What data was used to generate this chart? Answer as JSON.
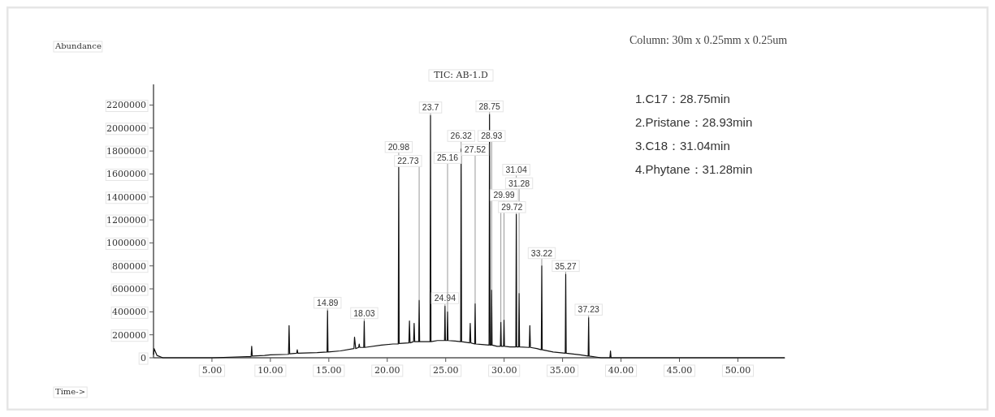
{
  "chart_data": {
    "type": "line",
    "title": "TIC: AB-1.D",
    "xlabel": "Time->",
    "ylabel": "Abundance",
    "xlim": [
      0,
      54
    ],
    "ylim": [
      0,
      2380000
    ],
    "xticks": [
      {
        "value": 5,
        "label": "5.00"
      },
      {
        "value": 10,
        "label": "10.00"
      },
      {
        "value": 15,
        "label": "15.00"
      },
      {
        "value": 20,
        "label": "20.00"
      },
      {
        "value": 25,
        "label": "25.00"
      },
      {
        "value": 30,
        "label": "30.00"
      },
      {
        "value": 35,
        "label": "35.00"
      },
      {
        "value": 40,
        "label": "40.00"
      },
      {
        "value": 45,
        "label": "45.00"
      },
      {
        "value": 50,
        "label": "50.00"
      }
    ],
    "yticks": [
      0,
      200000,
      400000,
      600000,
      800000,
      1000000,
      1200000,
      1400000,
      1600000,
      1800000,
      2000000,
      2200000
    ],
    "grid": false,
    "marker": "none",
    "line_style": "solid",
    "series": [
      {
        "color": "#111111",
        "x": [
          0,
          0.05,
          0.3,
          0.8,
          5,
          8,
          8.35,
          8.4,
          8.45,
          9.5,
          10,
          11.55,
          11.6,
          11.65,
          12.25,
          12.3,
          12.35,
          14,
          14.85,
          14.89,
          14.93,
          16,
          17.15,
          17.2,
          17.3,
          17.55,
          17.6,
          17.65,
          17.99,
          18.03,
          18.07,
          19.5,
          20.5,
          20.94,
          20.98,
          21.02,
          21.85,
          21.9,
          21.95,
          22.25,
          22.3,
          22.35,
          22.69,
          22.73,
          22.77,
          23.66,
          23.7,
          23.74,
          24.3,
          24.9,
          24.94,
          24.98,
          25.12,
          25.16,
          25.2,
          25.8,
          26.28,
          26.32,
          26.36,
          27.05,
          27.1,
          27.15,
          27.48,
          27.52,
          27.56,
          28.1,
          28.71,
          28.75,
          28.8,
          28.89,
          28.93,
          28.97,
          29.4,
          29.68,
          29.72,
          29.76,
          29.95,
          29.99,
          30.03,
          30.5,
          31,
          31.04,
          31.08,
          31.24,
          31.28,
          31.32,
          32.15,
          32.2,
          32.25,
          32.8,
          33.18,
          33.22,
          33.26,
          34.2,
          35.23,
          35.27,
          35.31,
          36.5,
          37.19,
          37.23,
          37.27,
          38.3,
          39.05,
          39.1,
          39.15,
          54
        ],
        "values": [
          30000,
          80000,
          20000,
          0,
          0,
          10000,
          10000,
          100000,
          15000,
          20000,
          25000,
          30000,
          280000,
          35000,
          40000,
          70000,
          40000,
          45000,
          50000,
          410000,
          50000,
          60000,
          80000,
          180000,
          80000,
          90000,
          120000,
          90000,
          90000,
          320000,
          90000,
          110000,
          120000,
          120000,
          1660000,
          125000,
          130000,
          320000,
          130000,
          140000,
          300000,
          140000,
          140000,
          500000,
          140000,
          140000,
          2110000,
          140000,
          150000,
          150000,
          450000,
          150000,
          150000,
          400000,
          150000,
          145000,
          140000,
          1820000,
          140000,
          130000,
          300000,
          130000,
          120000,
          470000,
          120000,
          115000,
          110000,
          2120000,
          110000,
          110000,
          590000,
          110000,
          100000,
          100000,
          310000,
          100000,
          100000,
          330000,
          100000,
          95000,
          95000,
          1250000,
          95000,
          95000,
          560000,
          95000,
          90000,
          280000,
          90000,
          80000,
          70000,
          800000,
          70000,
          50000,
          40000,
          730000,
          40000,
          25000,
          15000,
          350000,
          15000,
          0,
          0,
          60000,
          0,
          0
        ]
      }
    ],
    "annotations": [
      {
        "text": "14.89",
        "x": 14.89,
        "y": 410000
      },
      {
        "text": "18.03",
        "x": 18.03,
        "y": 320000
      },
      {
        "text": "20.98",
        "x": 20.98,
        "y": 1660000
      },
      {
        "text": "22.73",
        "x": 22.73,
        "y": 500000
      },
      {
        "text": "23.7",
        "x": 23.7,
        "y": 2110000
      },
      {
        "text": "26.32",
        "x": 26.32,
        "y": 1820000
      },
      {
        "text": "28.75",
        "x": 28.75,
        "y": 2120000
      },
      {
        "text": "31.04",
        "x": 31.04,
        "y": 1250000
      },
      {
        "text": "33.22",
        "x": 33.22,
        "y": 800000
      },
      {
        "text": "27.52",
        "x": 27.52,
        "y": 470000
      },
      {
        "text": "28.93",
        "x": 28.93,
        "y": 590000
      },
      {
        "text": "35.27",
        "x": 35.27,
        "y": 730000
      },
      {
        "text": "24.94",
        "x": 24.94,
        "y": 450000
      },
      {
        "text": "31.28",
        "x": 31.28,
        "y": 560000
      },
      {
        "text": "25.16",
        "x": 25.16,
        "y": 400000
      },
      {
        "text": "29.99",
        "x": 29.99,
        "y": 330000
      },
      {
        "text": "29.72",
        "x": 29.72,
        "y": 310000
      },
      {
        "text": "37.23",
        "x": 37.23,
        "y": 350000
      },
      "Column: 30m x 0.25mm x 0.25um",
      "1.C17：28.75min",
      "2.Pristane：28.93min",
      "3.C18：31.04min",
      "4.Phytane：31.28min"
    ]
  }
}
